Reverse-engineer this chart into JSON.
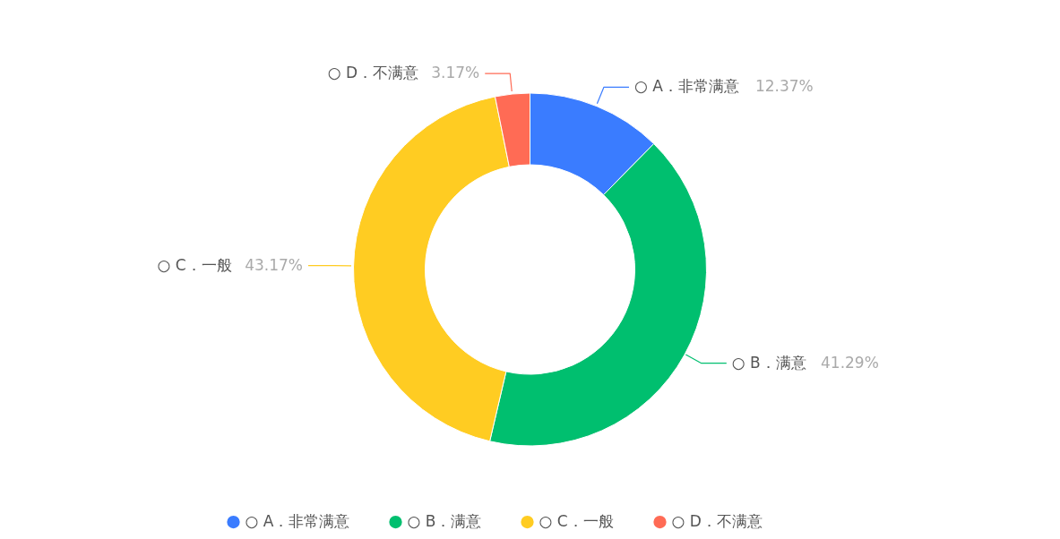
{
  "chart_data": {
    "type": "donut",
    "categories": [
      "○ A．非常满意",
      "○ B．满意",
      "○ C．一般",
      "○ D．不满意"
    ],
    "values": [
      12.37,
      41.29,
      43.17,
      3.17
    ],
    "value_labels": [
      "12.37%",
      "41.29%",
      "43.17%",
      "3.17%"
    ],
    "colors": [
      "#3a7cff",
      "#00bf6f",
      "#ffcc22",
      "#ff6b55"
    ],
    "legend": "bottom"
  }
}
